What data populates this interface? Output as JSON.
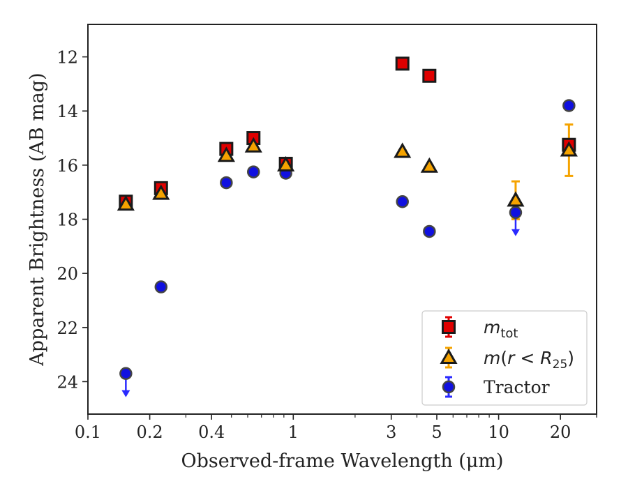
{
  "chart_data": {
    "type": "scatter",
    "title": "",
    "xlabel": "Observed-frame Wavelength (μm)",
    "ylabel": "Apparent Brightness (AB mag)",
    "xscale": "log",
    "xlim": [
      0.1,
      30
    ],
    "ylim": [
      25.2,
      10.8
    ],
    "y_inverted": true,
    "x_ticks": [
      {
        "value": 0.1,
        "label": "0.1"
      },
      {
        "value": 0.2,
        "label": "0.2"
      },
      {
        "value": 0.4,
        "label": "0.4"
      },
      {
        "value": 1,
        "label": "1"
      },
      {
        "value": 3,
        "label": "3"
      },
      {
        "value": 5,
        "label": "5"
      },
      {
        "value": 10,
        "label": "10"
      },
      {
        "value": 20,
        "label": "20"
      }
    ],
    "y_ticks": [
      {
        "value": 12,
        "label": "12"
      },
      {
        "value": 14,
        "label": "14"
      },
      {
        "value": 16,
        "label": "16"
      },
      {
        "value": 18,
        "label": "18"
      },
      {
        "value": 20,
        "label": "20"
      },
      {
        "value": 22,
        "label": "22"
      },
      {
        "value": 24,
        "label": "24"
      }
    ],
    "grid": false,
    "legend_position": "lower-right",
    "series": [
      {
        "name": "m_tot",
        "marker": "square",
        "color": "#e00000",
        "errcolor": "#e00000",
        "points": [
          {
            "x": 0.153,
            "y": 17.35,
            "err": 0.1
          },
          {
            "x": 0.227,
            "y": 16.85,
            "err": 0.1
          },
          {
            "x": 0.472,
            "y": 15.4,
            "err": 0.05
          },
          {
            "x": 0.64,
            "y": 15.0,
            "err": 0.05
          },
          {
            "x": 0.92,
            "y": 15.95,
            "err": 0.05
          },
          {
            "x": 3.4,
            "y": 12.25,
            "err": 0.03
          },
          {
            "x": 4.6,
            "y": 12.7,
            "err": 0.03
          },
          {
            "x": 22,
            "y": 15.25,
            "err": 0.1
          }
        ]
      },
      {
        "name": "m(r < R25)",
        "marker": "triangle",
        "color": "#f5a300",
        "errcolor": "#f5a300",
        "points": [
          {
            "x": 0.153,
            "y": 17.45,
            "err": 0.05
          },
          {
            "x": 0.227,
            "y": 17.05,
            "err": 0.05
          },
          {
            "x": 0.472,
            "y": 15.65,
            "err": 0.05
          },
          {
            "x": 0.64,
            "y": 15.3,
            "err": 0.05
          },
          {
            "x": 0.92,
            "y": 16.0,
            "err": 0.05
          },
          {
            "x": 3.4,
            "y": 15.5,
            "err": 0.05
          },
          {
            "x": 4.6,
            "y": 16.05,
            "err": 0.05
          },
          {
            "x": 12.1,
            "y": 17.3,
            "err": 0.7
          },
          {
            "x": 22,
            "y": 15.45,
            "err": 0.95
          }
        ]
      },
      {
        "name": "Tractor",
        "marker": "circle",
        "color": "#1010e0",
        "errcolor": "#2a2aff",
        "points": [
          {
            "x": 0.153,
            "y": 23.7,
            "upper_limit": true
          },
          {
            "x": 0.227,
            "y": 20.5
          },
          {
            "x": 0.472,
            "y": 16.65
          },
          {
            "x": 0.64,
            "y": 16.25
          },
          {
            "x": 0.92,
            "y": 16.3
          },
          {
            "x": 3.4,
            "y": 17.35
          },
          {
            "x": 4.6,
            "y": 18.45
          },
          {
            "x": 12.1,
            "y": 17.75,
            "upper_limit": true
          },
          {
            "x": 22,
            "y": 13.8
          }
        ]
      }
    ]
  }
}
